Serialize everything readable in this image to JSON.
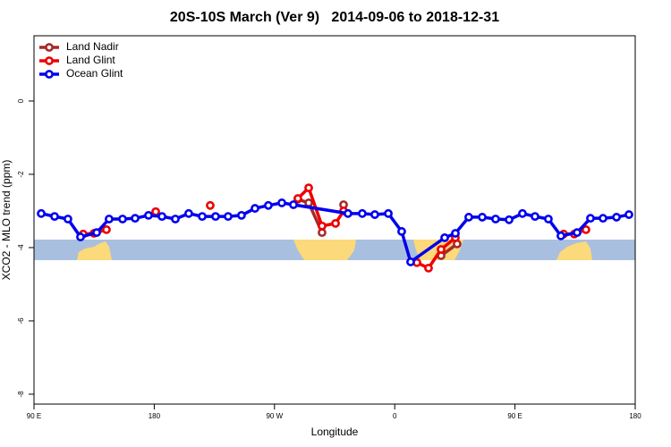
{
  "chart_data": {
    "type": "line",
    "title": "20S-10S March (Ver 9)   2014-09-06 to 2018-12-31",
    "xlabel": "Longitude",
    "ylabel": "XCO2 - MLO trend (ppm)",
    "xlim": [
      90,
      540
    ],
    "ylim": [
      -8.27,
      1.78
    ],
    "xticks": [
      {
        "value": 90,
        "label": "90 E"
      },
      180,
      {
        "value": 270,
        "label": "90 W"
      },
      {
        "value": 360,
        "label": "0"
      },
      {
        "value": 450,
        "label": "90 E"
      },
      {
        "value": 540,
        "label": "180"
      }
    ],
    "yticks": [
      0,
      -2,
      -4,
      -6,
      -8
    ],
    "legend": "top-left",
    "series": [
      {
        "name": "Land Nadir",
        "color": "#a52a2a",
        "x": [
          287.5,
          295.6,
          305.6,
          null,
          321.7,
          null,
          394.7,
          406.7
        ],
        "values": [
          -2.68,
          -2.78,
          -3.59,
          null,
          -2.83,
          null,
          -4.22,
          -3.9
        ]
      },
      {
        "name": "Land Glint",
        "color": "#ee0000",
        "x": [
          126.8,
          134.9,
          144.2,
          null,
          181.1,
          null,
          221.9,
          null,
          287.5,
          295.6,
          305.6,
          315.7,
          321.7,
          null,
          376.6,
          385.3,
          394.7,
          405.4,
          null,
          486.4,
          494.4,
          503.1
        ],
        "values": [
          -3.63,
          -3.61,
          -3.51,
          null,
          -3.02,
          null,
          -2.85,
          null,
          -2.66,
          -2.37,
          -3.41,
          -3.34,
          -3.0,
          null,
          -4.41,
          -4.56,
          -4.05,
          -3.73,
          null,
          -3.63,
          -3.63,
          -3.51
        ]
      },
      {
        "name": "Ocean Glint",
        "color": "#0000ee",
        "x": [
          95.4,
          105.4,
          115.4,
          124.8,
          136.9,
          146.2,
          156.3,
          165.7,
          175.7,
          185.8,
          195.8,
          205.8,
          215.9,
          225.9,
          235.3,
          245.3,
          255.4,
          265.4,
          275.5,
          284.2,
          325.0,
          335.7,
          345.1,
          355.2,
          365.2,
          371.9,
          397.4,
          405.4,
          415.4,
          425.5,
          435.5,
          445.6,
          455.6,
          465.0,
          475.0,
          484.4,
          496.5,
          506.5,
          515.9,
          526.0,
          535.3
        ],
        "values": [
          -3.07,
          -3.15,
          -3.22,
          -3.71,
          -3.59,
          -3.22,
          -3.22,
          -3.2,
          -3.12,
          -3.15,
          -3.22,
          -3.07,
          -3.15,
          -3.15,
          -3.15,
          -3.12,
          -2.93,
          -2.85,
          -2.78,
          -2.83,
          -3.07,
          -3.07,
          -3.1,
          -3.07,
          -3.56,
          -4.39,
          -3.73,
          -3.61,
          -3.17,
          -3.17,
          -3.22,
          -3.24,
          -3.07,
          -3.15,
          -3.22,
          -3.68,
          -3.59,
          -3.2,
          -3.2,
          -3.17,
          -3.1
        ]
      }
    ]
  }
}
